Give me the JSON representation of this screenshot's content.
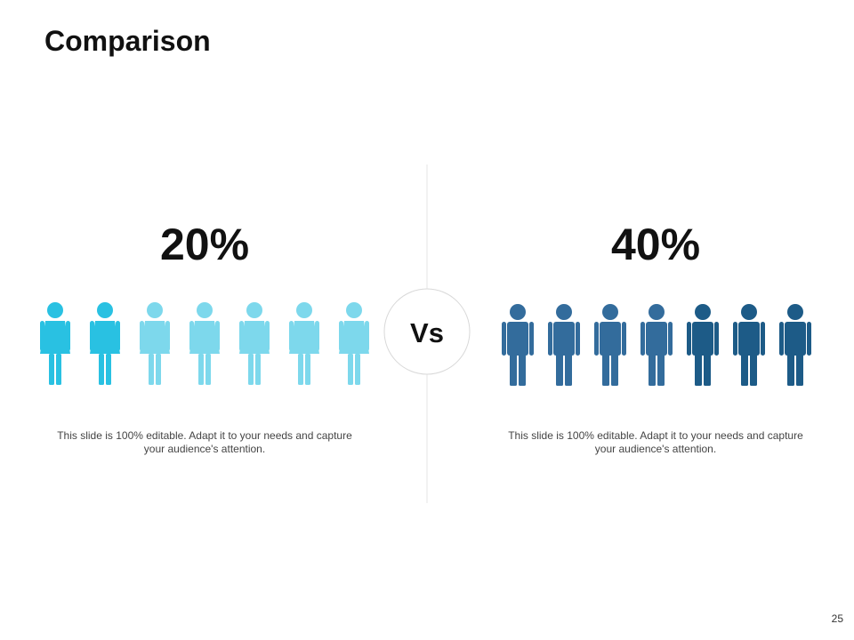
{
  "header": {
    "title": "Comparison"
  },
  "left": {
    "percent": "20%",
    "text": "This slide is 100% editable. Adapt it to your needs and capture your audience's attention."
  },
  "center": {
    "label": "Vs"
  },
  "right": {
    "percent": "40%",
    "text": "This slide is 100% editable. Adapt it to your needs and capture your audience's attention."
  },
  "footer": {
    "page": "25"
  }
}
